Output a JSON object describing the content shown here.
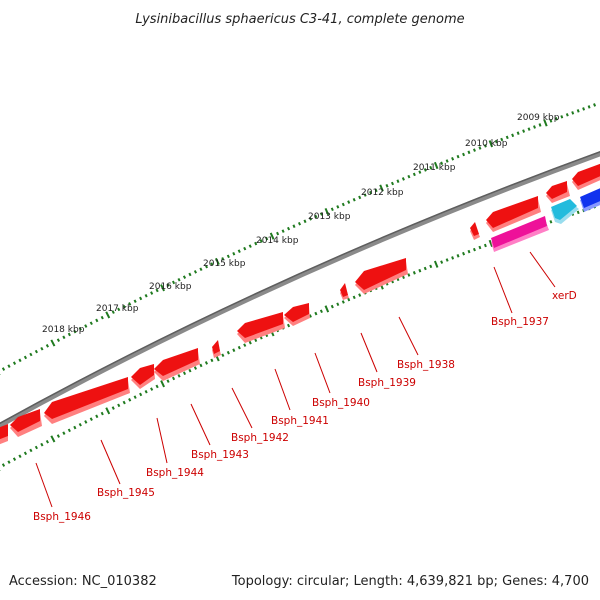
{
  "title": "Lysinibacillus sphaericus C3-41, complete genome",
  "accession": "Accession: NC_010382",
  "topology": "Topology: circular; Length: 4,639,821 bp; Genes: 4,700",
  "colors": {
    "backbone": "#7a7a7a",
    "ticks": "#1f7a1f",
    "gene_red": "#ee1111",
    "gene_red_shadow": "#ff7777",
    "gene_magenta": "#ee1199",
    "gene_cyan": "#22bbdd",
    "gene_blue": "#1133ee",
    "label": "#cc0000"
  },
  "scale_ticks": [
    "2018 kbp",
    "2017 kbp",
    "2016 kbp",
    "2015 kbp",
    "2014 kbp",
    "2013 kbp",
    "2012 kbp",
    "2011 kbp",
    "2010 kbp",
    "2009 kbp"
  ],
  "genes": [
    {
      "name": "Bsph_1946",
      "color": "red"
    },
    {
      "name": "Bsph_1945",
      "color": "red"
    },
    {
      "name": "Bsph_1944",
      "color": "red"
    },
    {
      "name": "Bsph_1943",
      "color": "red"
    },
    {
      "name": "Bsph_1942",
      "color": "red"
    },
    {
      "name": "Bsph_1941",
      "color": "red"
    },
    {
      "name": "Bsph_1940",
      "color": "red"
    },
    {
      "name": "Bsph_1939",
      "color": "red"
    },
    {
      "name": "Bsph_1938",
      "color": "red"
    },
    {
      "name": "Bsph_1937",
      "color": "magenta"
    },
    {
      "name": "xerD",
      "color": "red"
    }
  ]
}
